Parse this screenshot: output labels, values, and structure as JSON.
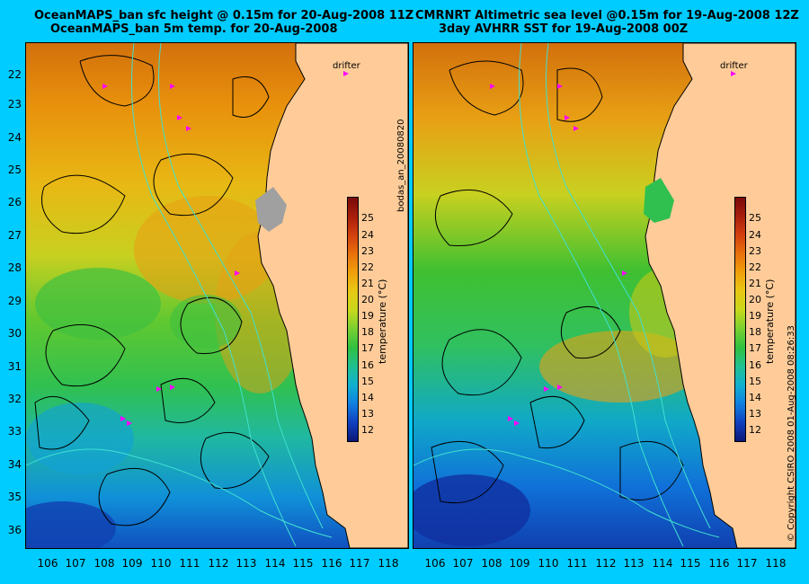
{
  "left_panel": {
    "title_line1": "OceanMAPS_ban sfc height @ 0.15m for 20-Aug-2008 11Z",
    "title_line2": "OceanMAPS_ban 5m temp. for 20-Aug-2008",
    "legend_label": "drifter"
  },
  "right_panel": {
    "title_line1": "CMRNRT Altimetric sea level  @0.15m  for 19-Aug-2008 12Z",
    "title_line2": "3day AVHRR SST for 19-Aug-2008 00Z",
    "legend_label": "drifter"
  },
  "y_ticks": [
    "22",
    "23",
    "24",
    "25",
    "26",
    "27",
    "28",
    "29",
    "30",
    "31",
    "32",
    "33",
    "34",
    "35",
    "36"
  ],
  "x_ticks": [
    "106",
    "107",
    "108",
    "109",
    "110",
    "111",
    "112",
    "113",
    "114",
    "115",
    "116",
    "117",
    "118"
  ],
  "colorbar": {
    "title": "temperature (°C)",
    "ticks": [
      "25",
      "24",
      "23",
      "22",
      "21",
      "20",
      "19",
      "18",
      "17",
      "16",
      "15",
      "14",
      "13",
      "12"
    ],
    "colors": [
      "#7a0a0a",
      "#a81e0c",
      "#d2400e",
      "#e8700c",
      "#f0a00c",
      "#e8c814",
      "#c8d81c",
      "#78d030",
      "#30c040",
      "#20c090",
      "#10b0d0",
      "#1080e0",
      "#1040c0",
      "#0c1878"
    ]
  },
  "side_text_mid": "bodas_an_20080820",
  "side_text_right": "© Copyright CSIRO 2008    01-Aug-2008 08:26:33",
  "colors": {
    "background": "#00ccff",
    "land": "#ffcc99",
    "contour": "#000000",
    "bathymetry": "#40e0d0",
    "drifter": "#ff00ff"
  }
}
